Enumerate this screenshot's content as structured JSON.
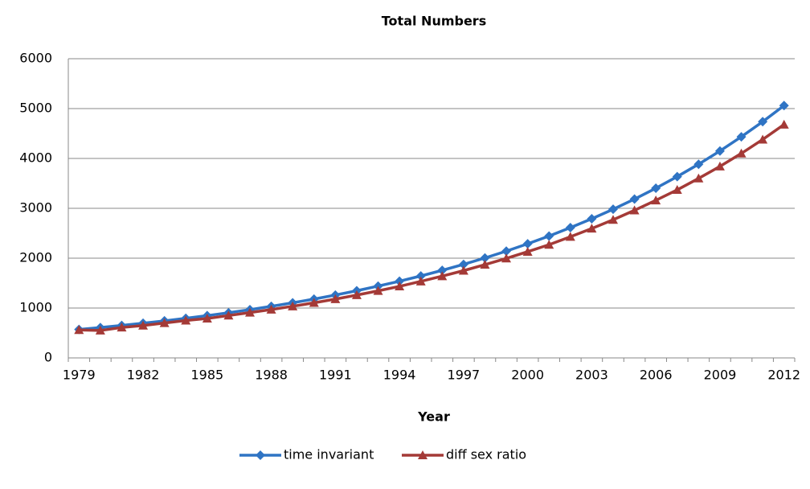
{
  "chart_data": {
    "type": "line",
    "title": "Total Numbers",
    "x_label": "Year",
    "categories": [
      1979,
      null,
      null,
      1982,
      null,
      null,
      1985,
      null,
      null,
      1988,
      null,
      null,
      1991,
      null,
      null,
      1994,
      null,
      null,
      1997,
      null,
      null,
      2000,
      null,
      null,
      2003,
      null,
      null,
      2006,
      null,
      null,
      2009,
      null,
      null,
      2012
    ],
    "series": [
      {
        "name": "time invariant",
        "color": "#2f74c4",
        "marker": "diamond",
        "values": [
          570,
          609,
          651,
          695,
          743,
          794,
          848,
          906,
          968,
          1034,
          1105,
          1180,
          1261,
          1347,
          1440,
          1538,
          1643,
          1756,
          1876,
          2004,
          2141,
          2288,
          2444,
          2612,
          2790,
          2981,
          3185,
          3403,
          3636,
          3884,
          4150,
          4434,
          4737,
          5061
        ]
      },
      {
        "name": "diff sex ratio",
        "color": "#a43a37",
        "marker": "triangle",
        "values": [
          560,
          550,
          610,
          650,
          700,
          750,
          790,
          850,
          910,
          970,
          1035,
          1105,
          1180,
          1260,
          1345,
          1435,
          1535,
          1640,
          1750,
          1870,
          1995,
          2130,
          2270,
          2430,
          2595,
          2770,
          2960,
          3160,
          3370,
          3600,
          3840,
          4100,
          4380,
          4680
        ]
      }
    ],
    "ylim": [
      0,
      6000
    ],
    "yticks": [
      0,
      1000,
      2000,
      3000,
      4000,
      5000,
      6000
    ],
    "grid": true,
    "legend": "bottom"
  }
}
